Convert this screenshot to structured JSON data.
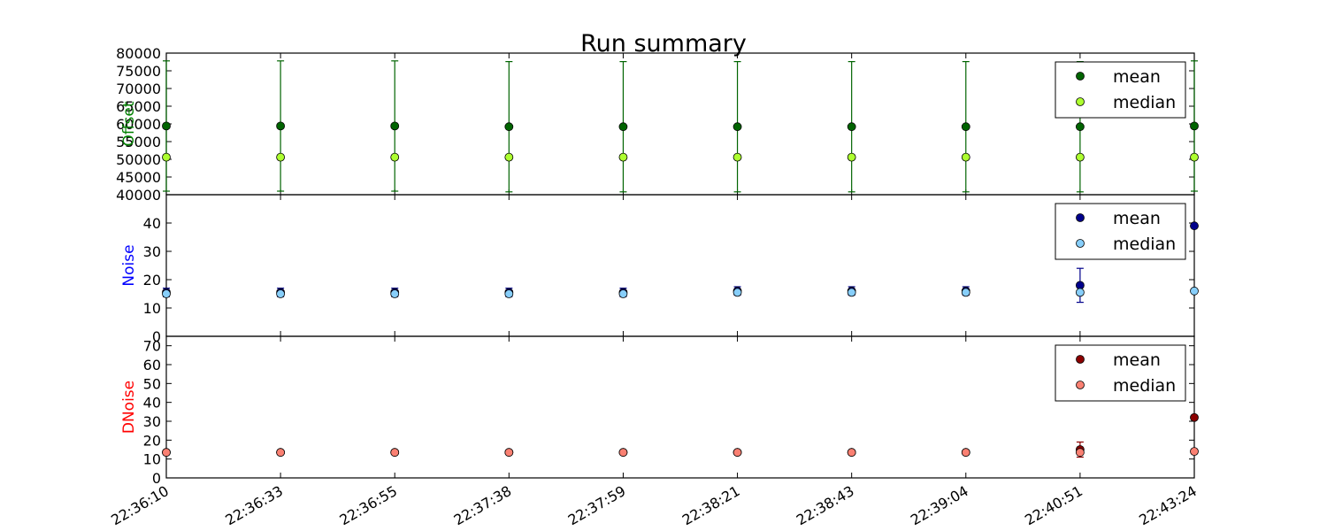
{
  "chart_data": {
    "type": "scatter",
    "title": "Run summary",
    "x_categories": [
      "22:36:10",
      "22:36:33",
      "22:36:55",
      "22:37:38",
      "22:37:59",
      "22:38:21",
      "22:38:43",
      "22:39:04",
      "22:40:51",
      "22:43:24"
    ],
    "panels": [
      {
        "id": "offset",
        "ylabel": "Offset",
        "ylabel_color": "#008000",
        "ylim": [
          40000,
          80000
        ],
        "yticks": [
          40000,
          45000,
          50000,
          55000,
          60000,
          65000,
          70000,
          75000,
          80000
        ],
        "legend_position": "top-right",
        "series": [
          {
            "name": "mean",
            "color": "#006400",
            "values": [
              59400,
              59400,
              59400,
              59200,
              59200,
              59200,
              59200,
              59200,
              59200,
              59400
            ],
            "error": [
              18400,
              18400,
              18400,
              18400,
              18400,
              18400,
              18400,
              18400,
              18400,
              18400
            ]
          },
          {
            "name": "median",
            "color": "#adff2f",
            "values": [
              50600,
              50600,
              50600,
              50600,
              50600,
              50600,
              50600,
              50600,
              50600,
              50600
            ]
          }
        ]
      },
      {
        "id": "noise",
        "ylabel": "Noise",
        "ylabel_color": "#0000ff",
        "ylim": [
          0,
          50
        ],
        "yticks": [
          0,
          10,
          20,
          30,
          40
        ],
        "legend_position": "top-right",
        "series": [
          {
            "name": "mean",
            "color": "#00008b",
            "values": [
              15.5,
              15.5,
              15.5,
              15.5,
              15.5,
              16,
              16,
              16,
              18,
              39
            ],
            "error": [
              1.5,
              1.5,
              1.5,
              1.5,
              1.5,
              1.5,
              1.5,
              1.5,
              6,
              0
            ]
          },
          {
            "name": "median",
            "color": "#87cefa",
            "values": [
              15,
              15,
              15,
              15,
              15,
              15.5,
              15.5,
              15.5,
              15.5,
              16
            ]
          }
        ]
      },
      {
        "id": "dnoise",
        "ylabel": "DNoise",
        "ylabel_color": "#ff0000",
        "ylim": [
          0,
          75
        ],
        "yticks": [
          0,
          10,
          20,
          30,
          40,
          50,
          60,
          70
        ],
        "legend_position": "top-right",
        "series": [
          {
            "name": "mean",
            "color": "#8b0000",
            "values": [
              13.5,
              13.5,
              13.5,
              13.5,
              13.5,
              13.5,
              13.5,
              13.5,
              15,
              32
            ],
            "error": [
              0.5,
              0.5,
              0.5,
              0.5,
              0.5,
              0.5,
              0.5,
              0.5,
              4,
              0
            ]
          },
          {
            "name": "median",
            "color": "#fa8072",
            "values": [
              13.5,
              13.5,
              13.5,
              13.5,
              13.5,
              13.5,
              13.5,
              13.5,
              13.5,
              14
            ]
          }
        ]
      }
    ]
  }
}
